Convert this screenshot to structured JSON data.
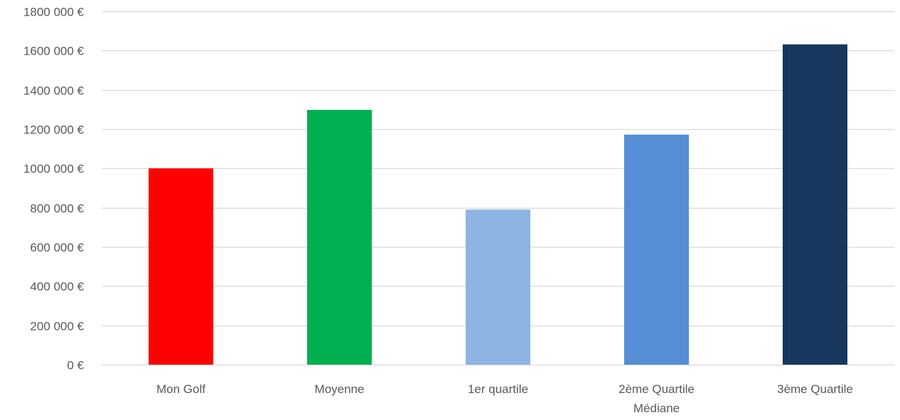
{
  "chart_data": {
    "type": "bar",
    "title": "",
    "xlabel": "",
    "ylabel": "",
    "categories": [
      [
        "Mon Golf"
      ],
      [
        "Moyenne"
      ],
      [
        "1er quartile"
      ],
      [
        "2ème Quartile",
        "Médiane"
      ],
      [
        "3ème Quartile"
      ]
    ],
    "values": [
      1000000,
      1298000,
      790000,
      1172000,
      1632000
    ],
    "colors": [
      "#FF0000",
      "#00B050",
      "#8EB4E3",
      "#558ED5",
      "#17375E"
    ],
    "ylim": [
      0,
      1800000
    ],
    "yticks": [
      0,
      200000,
      400000,
      600000,
      800000,
      1000000,
      1200000,
      1400000,
      1600000,
      1800000
    ],
    "ytick_labels": [
      "0 €",
      "200 000 €",
      "400 000 €",
      "600 000 €",
      "800 000 €",
      "1000 000 €",
      "1200 000 €",
      "1400 000 €",
      "1600 000 €",
      "1800 000 €"
    ],
    "grid": true,
    "gridline_color": "#D9D9D9",
    "axis_text_color": "#595959",
    "legend": "none"
  }
}
